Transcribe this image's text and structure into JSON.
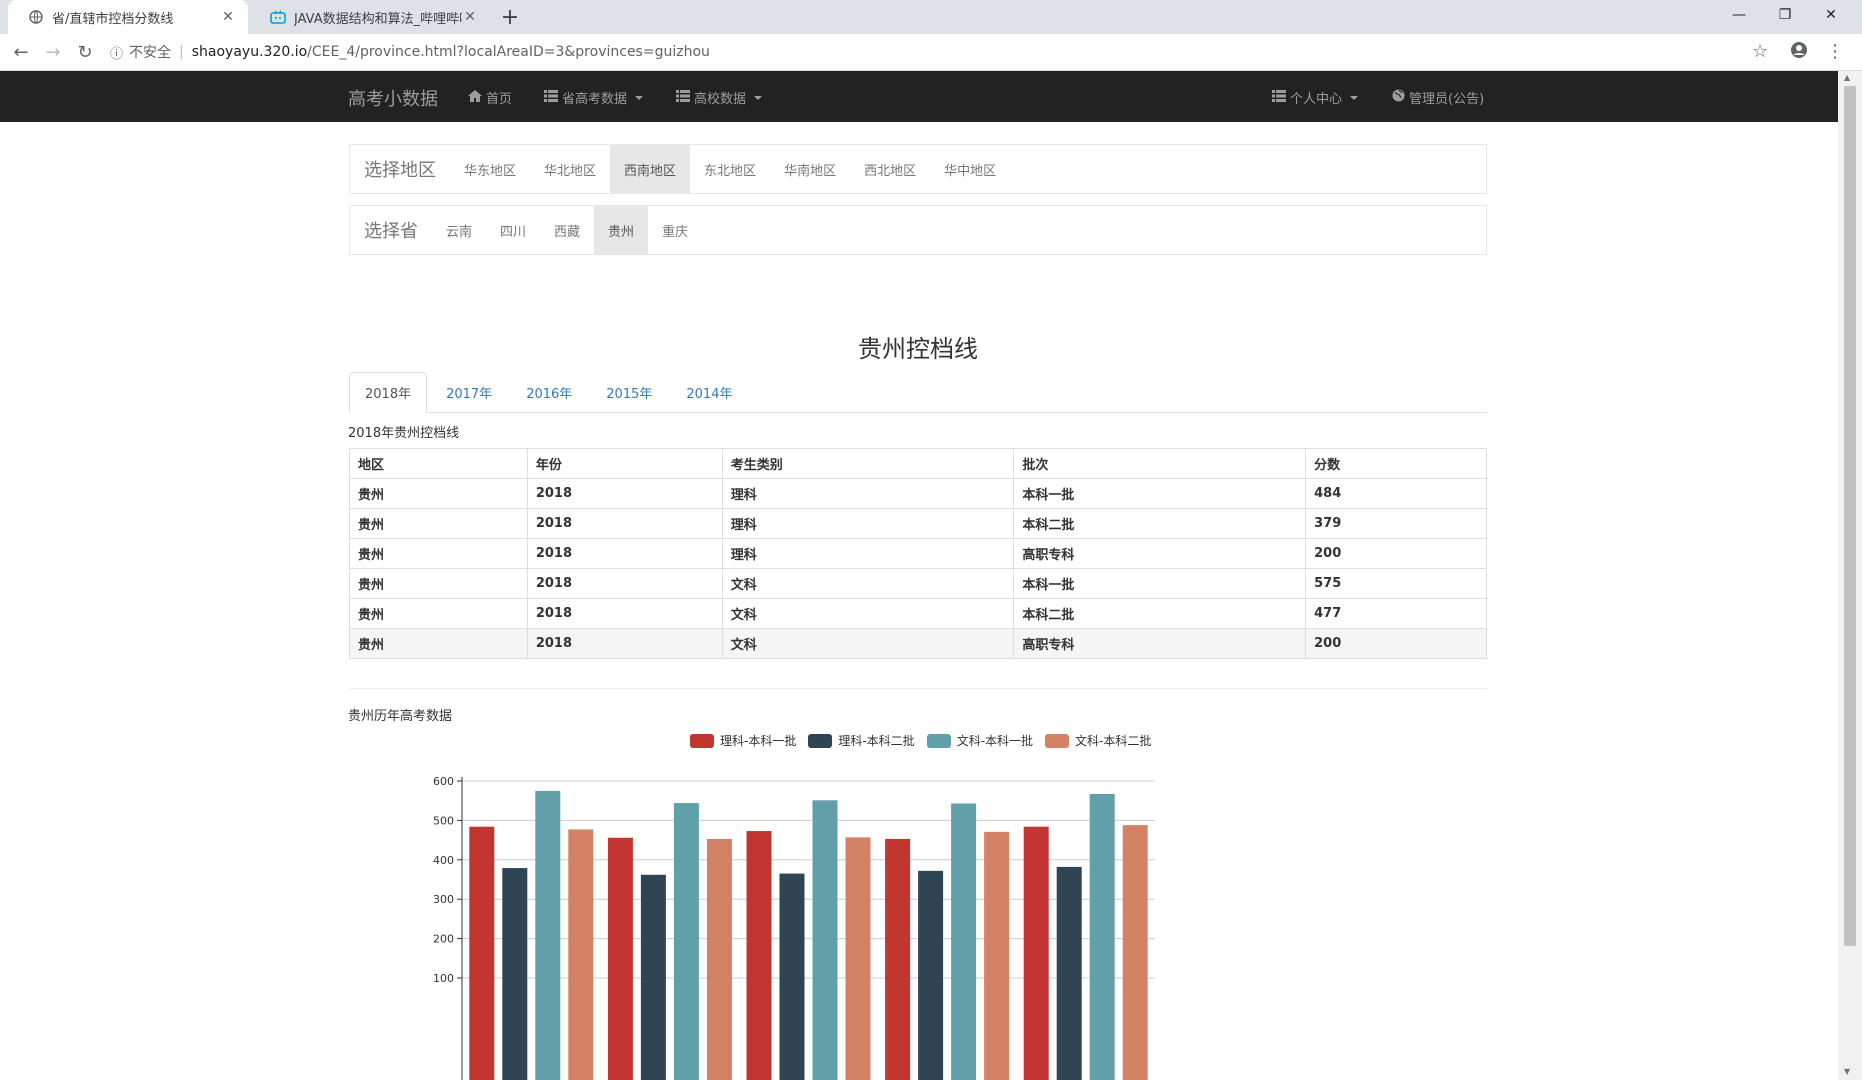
{
  "browser": {
    "tabs": [
      {
        "title": "省/直辖市控档分数线",
        "active": true
      },
      {
        "title": "JAVA数据结构和算法_哔哩哔哩",
        "active": false
      }
    ],
    "address": {
      "security_label": "不安全",
      "host": "shaoyayu.320.io",
      "path": "/CEE_4/province.html?localAreaID=3&provinces=guizhou"
    }
  },
  "navbar": {
    "brand": "高考小数据",
    "items": [
      {
        "label": "首页"
      },
      {
        "label": "省高考数据"
      },
      {
        "label": "高校数据"
      }
    ],
    "right": [
      {
        "label": "个人中心"
      },
      {
        "label": "管理员(公告)"
      }
    ]
  },
  "region_selector": {
    "label": "选择地区",
    "items": [
      "华东地区",
      "华北地区",
      "西南地区",
      "东北地区",
      "华南地区",
      "西北地区",
      "华中地区"
    ],
    "active": "西南地区"
  },
  "province_selector": {
    "label": "选择省",
    "items": [
      "云南",
      "四川",
      "西藏",
      "贵州",
      "重庆"
    ],
    "active": "贵州"
  },
  "page_title": "贵州控档线",
  "year_tabs": [
    "2018年",
    "2017年",
    "2016年",
    "2015年",
    "2014年"
  ],
  "active_year": "2018年",
  "table": {
    "caption": "2018年贵州控档线",
    "headers": [
      "地区",
      "年份",
      "考生类别",
      "批次",
      "分数"
    ],
    "rows": [
      [
        "贵州",
        "2018",
        "理科",
        "本科一批",
        "484"
      ],
      [
        "贵州",
        "2018",
        "理科",
        "本科二批",
        "379"
      ],
      [
        "贵州",
        "2018",
        "理科",
        "高职专科",
        "200"
      ],
      [
        "贵州",
        "2018",
        "文科",
        "本科一批",
        "575"
      ],
      [
        "贵州",
        "2018",
        "文科",
        "本科二批",
        "477"
      ],
      [
        "贵州",
        "2018",
        "文科",
        "高职专科",
        "200"
      ]
    ]
  },
  "chart_caption": "贵州历年高考数据",
  "chart_data": {
    "type": "bar",
    "categories": [
      "",
      "",
      "",
      "",
      ""
    ],
    "series": [
      {
        "name": "理科-本科一批",
        "color": "#c23531",
        "values": [
          484,
          456,
          473,
          453,
          484
        ]
      },
      {
        "name": "理科-本科二批",
        "color": "#2f4554",
        "values": [
          379,
          362,
          365,
          372,
          382
        ]
      },
      {
        "name": "文科-本科一批",
        "color": "#61a0a8",
        "values": [
          575,
          544,
          551,
          543,
          567
        ]
      },
      {
        "name": "文科-本科二批",
        "color": "#d48265",
        "values": [
          477,
          453,
          457,
          471,
          488
        ]
      }
    ],
    "yticks": [
      600,
      500,
      400,
      300,
      200,
      100
    ],
    "ylim": [
      0,
      600
    ],
    "grid": true,
    "legend_position": "top-center"
  }
}
